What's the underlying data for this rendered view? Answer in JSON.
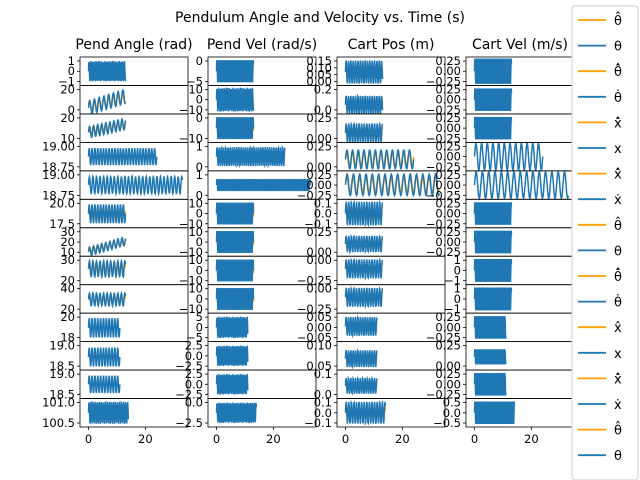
{
  "chart_data": {
    "type": "line",
    "title": "Pendulum Angle and Velocity vs. Time (s)",
    "colors": {
      "estimate": "#ff9f00",
      "measured": "#1f77b4"
    },
    "columns": [
      {
        "title": "Pend Angle (rad)"
      },
      {
        "title": "Pend Vel (rad/s)"
      },
      {
        "title": "Cart Pos (m)"
      },
      {
        "title": "Cart Vel (m/s)"
      }
    ],
    "xlim": [
      -3,
      35
    ],
    "xticks": [
      0,
      20
    ],
    "rows": [
      {
        "tmax": 13,
        "cols": [
          {
            "ylim": [
              -1.4,
              1.4
            ],
            "yticks": [
              "1",
              "0",
              "−1"
            ],
            "center": 0,
            "amp": 1.0,
            "freq": 1.6,
            "est": false
          },
          {
            "ylim": [
              -5.5,
              5.5
            ],
            "yticks": [
              "0",
              "−5"
            ],
            "center": 0,
            "amp": 4.5,
            "freq": 1.8,
            "est": false
          },
          {
            "ylim": [
              0,
              0.17
            ],
            "yticks": [
              "0.15",
              "0.10",
              "0.05",
              "0.00"
            ],
            "center": 0.08,
            "amp": 0.07,
            "freq": 1.2,
            "est": true,
            "estScale": 0.6
          },
          {
            "ylim": [
              -0.3,
              0.3
            ],
            "yticks": [
              "0.25",
              "0.00",
              "−0.25"
            ],
            "center": 0,
            "amp": 0.28,
            "freq": 1.8,
            "est": false
          }
        ]
      },
      {
        "tmax": 13,
        "cols": [
          {
            "ylim": [
              -2,
              22
            ],
            "yticks": [
              "20",
              "0"
            ],
            "center": 8,
            "amp": 6,
            "freq": 0.6,
            "est": true,
            "estScale": 0.7,
            "trend": 10
          },
          {
            "ylim": [
              -12,
              12
            ],
            "yticks": [
              "10",
              "0",
              "−10"
            ],
            "center": 0,
            "amp": 10,
            "freq": 1.6,
            "est": true,
            "estScale": 0.6
          },
          {
            "ylim": [
              0,
              0.25
            ],
            "yticks": [
              "0.2",
              "0.0"
            ],
            "center": 0.08,
            "amp": 0.08,
            "freq": 1.2,
            "est": true,
            "estScale": 0.6
          },
          {
            "ylim": [
              -0.3,
              0.3
            ],
            "yticks": [
              "0.25",
              "0.00",
              "−0.25"
            ],
            "center": 0,
            "amp": 0.25,
            "freq": 1.8,
            "est": false
          }
        ]
      },
      {
        "tmax": 13,
        "cols": [
          {
            "ylim": [
              6,
              26
            ],
            "yticks": [
              "20",
              "10"
            ],
            "center": 16,
            "amp": 4,
            "freq": 0.7,
            "est": true,
            "estScale": 0.8,
            "trend": 6
          },
          {
            "ylim": [
              -12,
              12
            ],
            "yticks": [
              "0",
              "−10"
            ],
            "center": 0,
            "amp": 10,
            "freq": 1.5,
            "est": true,
            "estScale": 0.6
          },
          {
            "ylim": [
              0,
              0.3
            ],
            "yticks": [
              "0.25",
              "0.00"
            ],
            "center": 0.1,
            "amp": 0.1,
            "freq": 1.1,
            "est": true,
            "estScale": 0.6
          },
          {
            "ylim": [
              -0.3,
              0.3
            ],
            "yticks": [
              "0.25",
              "0.00",
              "−0.25"
            ],
            "center": 0,
            "amp": 0.25,
            "freq": 1.8,
            "est": false
          }
        ]
      },
      {
        "tmax": 24,
        "cols": [
          {
            "ylim": [
              18.6,
              19.1
            ],
            "yticks": [
              "19.00",
              "18.75"
            ],
            "center": 18.85,
            "amp": 0.15,
            "freq": 1.0,
            "est": false
          },
          {
            "ylim": [
              -1.2,
              1.2
            ],
            "yticks": [
              "1",
              "0"
            ],
            "center": 0,
            "amp": 0.8,
            "freq": 1.3,
            "est": false
          },
          {
            "ylim": [
              0,
              0.3
            ],
            "yticks": [
              "0.25",
              "0.00"
            ],
            "center": 0.12,
            "amp": 0.1,
            "freq": 0.5,
            "est": true,
            "estScale": 0.7
          },
          {
            "ylim": [
              -0.3,
              0.3
            ],
            "yticks": [
              "0.25",
              "0.00",
              "−0.25"
            ],
            "center": 0,
            "amp": 0.28,
            "freq": 0.5,
            "est": false
          }
        ]
      },
      {
        "tmax": 33,
        "cols": [
          {
            "ylim": [
              18.65,
              19.05
            ],
            "yticks": [
              "19.00",
              "18.75"
            ],
            "center": 18.85,
            "amp": 0.12,
            "freq": 0.8,
            "est": false
          },
          {
            "ylim": [
              -1.4,
              1.4
            ],
            "yticks": [
              "1",
              "0"
            ],
            "center": 0,
            "amp": 0.6,
            "freq": 1.5,
            "est": false
          },
          {
            "ylim": [
              -0.25,
              0.28
            ],
            "yticks": [
              "0.25",
              "0.00",
              "−0.25"
            ],
            "center": 0.02,
            "amp": 0.2,
            "freq": 0.45,
            "est": true,
            "estScale": 0.7
          },
          {
            "ylim": [
              -0.3,
              0.3
            ],
            "yticks": [
              "0.25",
              "0.00",
              "−0.25"
            ],
            "center": 0,
            "amp": 0.28,
            "freq": 0.45,
            "est": false
          }
        ]
      },
      {
        "tmax": 13,
        "cols": [
          {
            "ylim": [
              16.5,
              21
            ],
            "yticks": [
              "20.0",
              "17.5"
            ],
            "center": 18.7,
            "amp": 1.5,
            "freq": 1.0,
            "est": true,
            "estScale": 0.7
          },
          {
            "ylim": [
              -12,
              12
            ],
            "yticks": [
              "10",
              "0",
              "−10"
            ],
            "center": 0,
            "amp": 10,
            "freq": 1.5,
            "est": true,
            "estScale": 0.6
          },
          {
            "ylim": [
              -0.12,
              0.12
            ],
            "yticks": [
              "0.1",
              "0.0",
              "−0.1"
            ],
            "center": 0,
            "amp": 0.1,
            "freq": 1.1,
            "est": true,
            "estScale": 0.6
          },
          {
            "ylim": [
              -0.3,
              0.3
            ],
            "yticks": [
              "0.25",
              "0.00",
              "−0.25"
            ],
            "center": 0,
            "amp": 0.25,
            "freq": 1.8,
            "est": false
          }
        ]
      },
      {
        "tmax": 13,
        "cols": [
          {
            "ylim": [
              8,
              34
            ],
            "yticks": [
              "30",
              "20",
              "10"
            ],
            "center": 17,
            "amp": 4,
            "freq": 0.7,
            "est": true,
            "estScale": 0.7,
            "trend": 10
          },
          {
            "ylim": [
              -12,
              12
            ],
            "yticks": [
              "10",
              "0",
              "−10"
            ],
            "center": 0,
            "amp": 10,
            "freq": 1.5,
            "est": true,
            "estScale": 0.6
          },
          {
            "ylim": [
              -0.05,
              0.3
            ],
            "yticks": [
              "0.25",
              "0.00"
            ],
            "center": 0.1,
            "amp": 0.1,
            "freq": 1.1,
            "est": true,
            "estScale": 0.6
          },
          {
            "ylim": [
              -0.3,
              0.3
            ],
            "yticks": [
              "0.25",
              "0.00",
              "−0.25"
            ],
            "center": 0,
            "amp": 0.25,
            "freq": 1.8,
            "est": false
          }
        ]
      },
      {
        "tmax": 13,
        "cols": [
          {
            "ylim": [
              14,
              32
            ],
            "yticks": [
              "30",
              "20"
            ],
            "center": 24,
            "amp": 5,
            "freq": 0.8,
            "est": true,
            "estScale": 0.8
          },
          {
            "ylim": [
              -12,
              12
            ],
            "yticks": [
              "10",
              "0",
              "−10"
            ],
            "center": 0,
            "amp": 10,
            "freq": 1.5,
            "est": true,
            "estScale": 0.6
          },
          {
            "ylim": [
              -0.3,
              0.15
            ],
            "yticks": [
              "0.00",
              "−0.25"
            ],
            "center": -0.05,
            "amp": 0.15,
            "freq": 1.1,
            "est": true,
            "estScale": 0.6
          },
          {
            "ylim": [
              -1.3,
              1.3
            ],
            "yticks": [
              "1",
              "0",
              "−1"
            ],
            "center": 0,
            "amp": 1.1,
            "freq": 1.8,
            "est": false
          }
        ]
      },
      {
        "tmax": 13,
        "cols": [
          {
            "ylim": [
              15,
              42
            ],
            "yticks": [
              "40",
              "20"
            ],
            "center": 28,
            "amp": 6,
            "freq": 0.8,
            "est": true,
            "estScale": 0.7
          },
          {
            "ylim": [
              -12,
              12
            ],
            "yticks": [
              "10",
              "0",
              "−10"
            ],
            "center": 0,
            "amp": 10,
            "freq": 1.5,
            "est": true,
            "estScale": 0.6
          },
          {
            "ylim": [
              -0.3,
              0.15
            ],
            "yticks": [
              "0.00",
              "−0.25"
            ],
            "center": -0.05,
            "amp": 0.15,
            "freq": 1.1,
            "est": true,
            "estScale": 0.6
          },
          {
            "ylim": [
              -1.3,
              1.3
            ],
            "yticks": [
              "1",
              "0",
              "−1"
            ],
            "center": 0,
            "amp": 1.1,
            "freq": 1.8,
            "est": false
          }
        ]
      },
      {
        "tmax": 11,
        "cols": [
          {
            "ylim": [
              17.5,
              21
            ],
            "yticks": [
              "20",
              "18"
            ],
            "center": 19.2,
            "amp": 1.2,
            "freq": 1.0,
            "est": false
          },
          {
            "ylim": [
              -6,
              6
            ],
            "yticks": [
              "5",
              "0",
              "−5"
            ],
            "center": 0,
            "amp": 4.5,
            "freq": 1.6,
            "est": false
          },
          {
            "ylim": [
              -0.07,
              0.08
            ],
            "yticks": [
              "0.05",
              "0.00",
              "−0.05"
            ],
            "center": 0.01,
            "amp": 0.05,
            "freq": 1.2,
            "est": true,
            "estScale": 0.6
          },
          {
            "ylim": [
              -0.3,
              0.3
            ],
            "yticks": [
              "0.25",
              "0.00",
              "−0.25"
            ],
            "center": 0,
            "amp": 0.25,
            "freq": 1.8,
            "est": false
          }
        ]
      },
      {
        "tmax": 11,
        "cols": [
          {
            "ylim": [
              18.4,
              19.6
            ],
            "yticks": [
              "19.0",
              "18.5"
            ],
            "center": 18.95,
            "amp": 0.4,
            "freq": 1.0,
            "est": false
          },
          {
            "ylim": [
              -3.5,
              3.5
            ],
            "yticks": [
              "2.5",
              "0.0",
              "−2.5"
            ],
            "center": 0,
            "amp": 2.5,
            "freq": 1.6,
            "est": false
          },
          {
            "ylim": [
              0.03,
              0.13
            ],
            "yticks": [
              "0.10",
              "0.05"
            ],
            "center": 0.07,
            "amp": 0.03,
            "freq": 1.2,
            "est": true,
            "estScale": 0.6
          },
          {
            "ylim": [
              -0.05,
              0.38
            ],
            "yticks": [
              "0.25",
              "0.00"
            ],
            "center": 0.15,
            "amp": 0.12,
            "freq": 1.8,
            "est": false
          }
        ]
      },
      {
        "tmax": 11,
        "cols": [
          {
            "ylim": [
              18.3,
              19.6
            ],
            "yticks": [
              "19.0",
              "18.5"
            ],
            "center": 18.95,
            "amp": 0.4,
            "freq": 1.0,
            "est": false
          },
          {
            "ylim": [
              -3.5,
              3.5
            ],
            "yticks": [
              "2.5",
              "0.0",
              "−2.5"
            ],
            "center": 0,
            "amp": 2.5,
            "freq": 1.6,
            "est": false
          },
          {
            "ylim": [
              -0.02,
              0.16
            ],
            "yticks": [
              "0.1",
              "0.0"
            ],
            "center": 0.06,
            "amp": 0.05,
            "freq": 1.2,
            "est": true,
            "estScale": 0.6
          },
          {
            "ylim": [
              -0.3,
              0.3
            ],
            "yticks": [
              "0.25",
              "0.00",
              "−0.25"
            ],
            "center": 0,
            "amp": 0.25,
            "freq": 1.8,
            "est": false
          }
        ]
      },
      {
        "tmax": 14,
        "cols": [
          {
            "ylim": [
              100.3,
              101.2
            ],
            "yticks": [
              "101.0",
              "100.5"
            ],
            "center": 100.75,
            "amp": 0.35,
            "freq": 1.4,
            "est": false
          },
          {
            "ylim": [
              -3.5,
              3.5
            ],
            "yticks": [
              "0.0",
              "−2.5"
            ],
            "center": 0,
            "amp": 2.5,
            "freq": 1.6,
            "est": false
          },
          {
            "ylim": [
              -0.13,
              0.13
            ],
            "yticks": [
              "0.1",
              "0.0",
              "−0.1"
            ],
            "center": 0,
            "amp": 0.1,
            "freq": 1.1,
            "est": true,
            "estScale": 0.6
          },
          {
            "ylim": [
              -0.6,
              0.6
            ],
            "yticks": [
              "0.5",
              "0.0",
              "−0.5"
            ],
            "center": 0,
            "amp": 0.5,
            "freq": 1.8,
            "est": false
          }
        ]
      }
    ],
    "legend": {
      "placement": "right",
      "entries": [
        {
          "label": "θ̂",
          "color": "#ff9f00"
        },
        {
          "label": "θ",
          "color": "#1f77b4"
        },
        {
          "label": "θ̂̇",
          "color": "#ff9f00"
        },
        {
          "label": "θ̇",
          "color": "#1f77b4"
        },
        {
          "label": "x̂̇",
          "color": "#ff9f00"
        },
        {
          "label": "x",
          "color": "#1f77b4"
        },
        {
          "label": "x̂̇",
          "color": "#ff9f00"
        },
        {
          "label": "ẋ",
          "color": "#1f77b4"
        },
        {
          "label": "θ̂",
          "color": "#ff9f00"
        },
        {
          "label": "θ",
          "color": "#1f77b4"
        },
        {
          "label": "θ̂̇",
          "color": "#ff9f00"
        },
        {
          "label": "θ̇",
          "color": "#1f77b4"
        },
        {
          "label": "x̂",
          "color": "#ff9f00"
        },
        {
          "label": "x",
          "color": "#1f77b4"
        },
        {
          "label": "x̂̇",
          "color": "#ff9f00"
        },
        {
          "label": "ẋ",
          "color": "#1f77b4"
        },
        {
          "label": "θ̂",
          "color": "#ff9f00"
        },
        {
          "label": "θ",
          "color": "#1f77b4"
        }
      ]
    }
  }
}
